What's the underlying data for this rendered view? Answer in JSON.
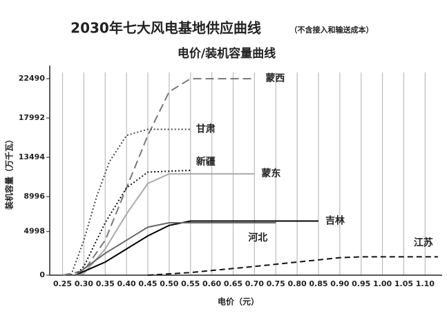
{
  "chart_data": {
    "type": "line",
    "title": "2030年七大风电基地供应曲线",
    "subtitle": "（不含接入和输送成本）",
    "subtitle2": "电价/装机容量曲线",
    "x_label": "电价（元）",
    "y_label": "装机容量（万千瓦）",
    "xlim": [
      0.22,
      1.14
    ],
    "ylim": [
      0,
      24000
    ],
    "xticks": [
      0.25,
      {
        "value": 0.3,
        "label": "0.30"
      },
      0.35,
      {
        "value": 0.4,
        "label": "0.40"
      },
      0.45,
      {
        "value": 0.5,
        "label": "0.50"
      },
      0.55,
      {
        "value": 0.6,
        "label": "0.60"
      },
      0.65,
      {
        "value": 0.7,
        "label": "0.70"
      },
      0.75,
      {
        "value": 0.8,
        "label": "0.80"
      },
      0.85,
      {
        "value": 0.9,
        "label": "0.90"
      },
      0.95,
      {
        "value": 1.0,
        "label": "1.00"
      },
      1.05,
      {
        "value": 1.1,
        "label": "1.10"
      }
    ],
    "yticks": [
      0,
      4998,
      8996,
      13494,
      17992,
      22490
    ],
    "grid": true,
    "series": [
      {
        "name": "蒙西",
        "color": "#777",
        "dash": "12,6",
        "x": [
          0.25,
          0.3,
          0.35,
          0.4,
          0.45,
          0.5,
          0.55,
          0.7
        ],
        "values": [
          0,
          500,
          4000,
          10000,
          16000,
          21000,
          22490,
          22490
        ]
      },
      {
        "name": "甘肃",
        "color": "#444",
        "dash": "2,3",
        "x": [
          0.27,
          0.3,
          0.33,
          0.36,
          0.4,
          0.45,
          0.55
        ],
        "values": [
          0,
          4000,
          9000,
          13000,
          16000,
          16700,
          16700
        ]
      },
      {
        "name": "新疆",
        "color": "#111",
        "dash": "2,3",
        "x": [
          0.28,
          0.3,
          0.35,
          0.4,
          0.45,
          0.55
        ],
        "values": [
          0,
          1000,
          6000,
          10000,
          11800,
          12000
        ]
      },
      {
        "name": "蒙东",
        "color": "#aaa",
        "dash": "none",
        "x": [
          0.28,
          0.3,
          0.35,
          0.4,
          0.45,
          0.5,
          0.7
        ],
        "values": [
          0,
          200,
          3000,
          7000,
          10500,
          11600,
          11600
        ]
      },
      {
        "name": "吉林",
        "color": "#000",
        "dash": "none",
        "x": [
          0.28,
          0.35,
          0.4,
          0.45,
          0.5,
          0.55,
          0.85
        ],
        "values": [
          0,
          1500,
          3000,
          4500,
          5700,
          6200,
          6200
        ]
      },
      {
        "name": "河北",
        "color": "#666",
        "dash": "none",
        "x": [
          0.28,
          0.35,
          0.4,
          0.45,
          0.5,
          0.75
        ],
        "values": [
          0,
          2500,
          4000,
          5500,
          6000,
          6000
        ]
      },
      {
        "name": "江苏",
        "color": "#111",
        "dash": "8,5",
        "x": [
          0.45,
          0.55,
          0.7,
          0.8,
          0.9,
          0.95,
          1.13
        ],
        "values": [
          0,
          300,
          1000,
          1500,
          2000,
          2100,
          2100
        ]
      }
    ]
  }
}
